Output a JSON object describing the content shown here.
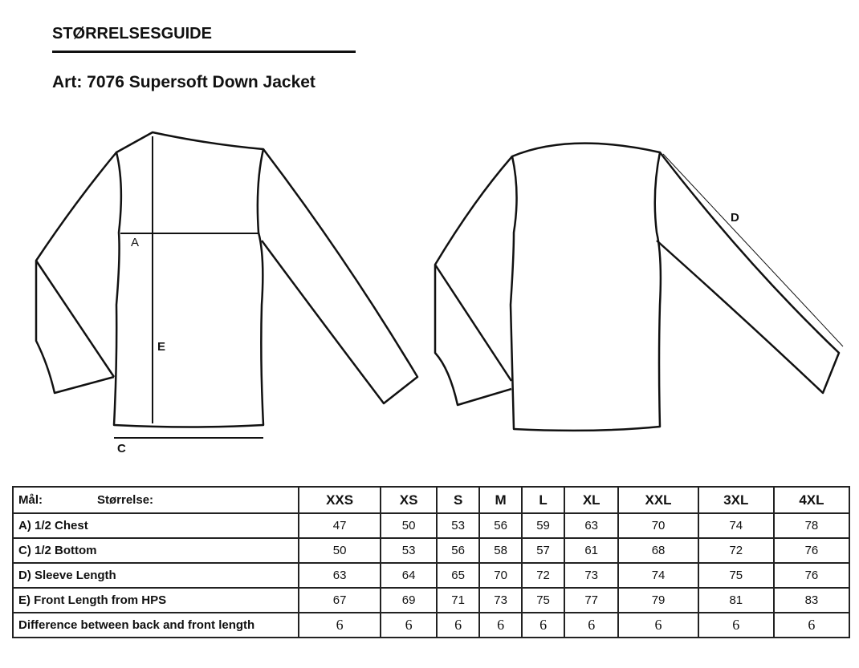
{
  "header": {
    "title": "STØRRELSESGUIDE",
    "article": "Art: 7076 Supersoft Down Jacket"
  },
  "diagram": {
    "labels": {
      "a": "A",
      "c": "C",
      "d": "D",
      "e": "E"
    }
  },
  "table": {
    "corner_label": "Mål:",
    "size_label": "Størrelse:",
    "sizes": [
      "XXS",
      "XS",
      "S",
      "M",
      "L",
      "XL",
      "XXL",
      "3XL",
      "4XL"
    ],
    "rows": [
      {
        "label": "A) 1/2 Chest",
        "values": [
          "47",
          "50",
          "53",
          "56",
          "59",
          "63",
          "70",
          "74",
          "78"
        ]
      },
      {
        "label": "C) 1/2 Bottom",
        "values": [
          "50",
          "53",
          "56",
          "58",
          "57",
          "61",
          "68",
          "72",
          "76"
        ]
      },
      {
        "label": "D) Sleeve Length",
        "values": [
          "63",
          "64",
          "65",
          "70",
          "72",
          "73",
          "74",
          "75",
          "76"
        ]
      },
      {
        "label": "E) Front Length from HPS",
        "values": [
          "67",
          "69",
          "71",
          "73",
          "75",
          "77",
          "79",
          "81",
          "83"
        ]
      },
      {
        "label": "Difference between back and front length",
        "values": [
          "6",
          "6",
          "6",
          "6",
          "6",
          "6",
          "6",
          "6",
          "6"
        ]
      }
    ]
  }
}
